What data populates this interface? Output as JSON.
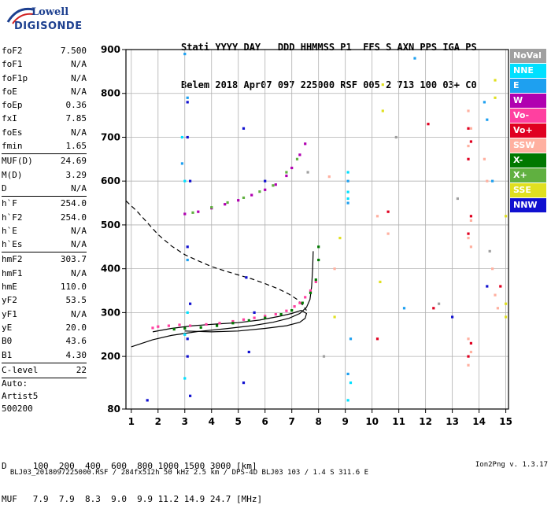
{
  "logo": {
    "line1": "Lowell",
    "line2": "DIGISONDE"
  },
  "header": {
    "line1": "Stati YYYY DAY   DDD HHMMSS P1  FFS S AXN PPS IGA PS",
    "line2": "Belem 2018 Apr07 097 225000 RSF 005 2 713 100 03+ C0"
  },
  "params": [
    {
      "label": "foF2",
      "value": "7.500"
    },
    {
      "label": "foF1",
      "value": "N/A"
    },
    {
      "label": "foF1p",
      "value": "N/A"
    },
    {
      "label": "foE",
      "value": "N/A"
    },
    {
      "label": "foEp",
      "value": "0.36"
    },
    {
      "label": "fxI",
      "value": "7.85"
    },
    {
      "label": "foEs",
      "value": "N/A"
    },
    {
      "label": "fmin",
      "value": "1.65",
      "sep_after": true
    },
    {
      "label": "MUF(D)",
      "value": "24.69"
    },
    {
      "label": "M(D)",
      "value": "3.29"
    },
    {
      "label": "D",
      "value": "N/A",
      "sep_after": true
    },
    {
      "label": "h`F",
      "value": "254.0"
    },
    {
      "label": "h`F2",
      "value": "254.0"
    },
    {
      "label": "h`E",
      "value": "N/A"
    },
    {
      "label": "h`Es",
      "value": "N/A",
      "sep_after": true
    },
    {
      "label": "hmF2",
      "value": "303.7"
    },
    {
      "label": "hmF1",
      "value": "N/A"
    },
    {
      "label": "hmE",
      "value": "110.0"
    },
    {
      "label": "yF2",
      "value": "53.5"
    },
    {
      "label": "yF1",
      "value": "N/A"
    },
    {
      "label": "yE",
      "value": "20.0"
    },
    {
      "label": "B0",
      "value": "43.6"
    },
    {
      "label": "B1",
      "value": "4.30",
      "sep_after": true
    },
    {
      "label": "C-level",
      "value": "22",
      "sep_after": true
    }
  ],
  "auto": {
    "line1": "Auto:",
    "line2": "Artist5",
    "line3": "500200"
  },
  "muf_table": {
    "d_row": "D     100  200  400  600  800 1000 1500 3000 [km]",
    "muf_row": "MUF   7.9  7.9  8.3  9.0  9.9 11.2 14.9 24.7 [MHz]"
  },
  "footer": {
    "left": "BLJ03_2018097225000.RSF / 284fx512h 50 kHz 2.5 km / DPS-4D BLJ03 103 / 1.4 S 311.6 E",
    "right": "Ion2Png v. 1.3.17"
  },
  "legend": [
    {
      "label": "NoVal",
      "color": "#a0a0a0"
    },
    {
      "label": "NNE",
      "color": "#00e0ff"
    },
    {
      "label": "E",
      "color": "#1ea0f0"
    },
    {
      "label": "W",
      "color": "#b000b0"
    },
    {
      "label": "Vo-",
      "color": "#ff40a0"
    },
    {
      "label": "Vo+",
      "color": "#e00020"
    },
    {
      "label": "SSW",
      "color": "#ffb0a0"
    },
    {
      "label": "X-",
      "color": "#007800"
    },
    {
      "label": "X+",
      "color": "#60b040"
    },
    {
      "label": "SSE",
      "color": "#e0e020"
    },
    {
      "label": "NNW",
      "color": "#1010d0"
    }
  ],
  "chart_data": {
    "type": "scatter",
    "xlabel": "",
    "ylabel": "",
    "xlim": [
      0.8,
      15.1
    ],
    "ylim": [
      80,
      900
    ],
    "x_ticks": [
      1,
      2,
      3,
      4,
      5,
      6,
      7,
      8,
      9,
      10,
      11,
      12,
      13,
      14,
      15
    ],
    "y_ticks": [
      80,
      200,
      300,
      400,
      500,
      600,
      700,
      800,
      900
    ],
    "grid": true,
    "legend_position": "right",
    "series": [
      {
        "name": "Vo-",
        "color": "#ff40a0",
        "points": [
          [
            1.8,
            265
          ],
          [
            2.0,
            268
          ],
          [
            2.4,
            270
          ],
          [
            2.8,
            272
          ],
          [
            3.2,
            270
          ],
          [
            3.8,
            273
          ],
          [
            4.3,
            276
          ],
          [
            4.8,
            280
          ],
          [
            5.2,
            284
          ],
          [
            5.6,
            288
          ],
          [
            6.0,
            292
          ],
          [
            6.4,
            296
          ],
          [
            6.8,
            304
          ],
          [
            7.1,
            314
          ],
          [
            7.3,
            322
          ],
          [
            7.5,
            335
          ],
          [
            7.7,
            350
          ],
          [
            7.9,
            370
          ]
        ]
      },
      {
        "name": "X-",
        "color": "#007800",
        "points": [
          [
            2.6,
            262
          ],
          [
            3.0,
            264
          ],
          [
            3.6,
            266
          ],
          [
            4.2,
            270
          ],
          [
            4.8,
            276
          ],
          [
            5.4,
            282
          ],
          [
            6.0,
            288
          ],
          [
            6.6,
            296
          ],
          [
            7.0,
            305
          ],
          [
            7.4,
            322
          ],
          [
            7.7,
            345
          ],
          [
            7.9,
            375
          ],
          [
            8.0,
            420
          ],
          [
            8.0,
            450
          ]
        ]
      },
      {
        "name": "W",
        "color": "#b000b0",
        "points": [
          [
            3.0,
            525
          ],
          [
            3.5,
            530
          ],
          [
            4.0,
            538
          ],
          [
            4.5,
            547
          ],
          [
            5.0,
            556
          ],
          [
            5.5,
            568
          ],
          [
            6.0,
            580
          ],
          [
            6.4,
            592
          ],
          [
            6.8,
            612
          ],
          [
            7.0,
            630
          ],
          [
            7.3,
            660
          ],
          [
            7.5,
            685
          ]
        ]
      },
      {
        "name": "X+",
        "color": "#60b040",
        "points": [
          [
            3.3,
            528
          ],
          [
            4.0,
            540
          ],
          [
            4.6,
            551
          ],
          [
            5.2,
            562
          ],
          [
            5.8,
            576
          ],
          [
            6.3,
            590
          ],
          [
            6.8,
            620
          ],
          [
            7.2,
            650
          ]
        ]
      },
      {
        "name": "SSW",
        "color": "#ffb0a0",
        "points": [
          [
            13.6,
            760
          ],
          [
            13.7,
            720
          ],
          [
            13.6,
            680
          ],
          [
            13.7,
            510
          ],
          [
            13.6,
            470
          ],
          [
            13.7,
            450
          ],
          [
            13.6,
            240
          ],
          [
            13.7,
            210
          ],
          [
            13.6,
            180
          ],
          [
            14.2,
            650
          ],
          [
            14.3,
            600
          ],
          [
            14.5,
            400
          ],
          [
            14.6,
            340
          ],
          [
            14.7,
            310
          ],
          [
            10.6,
            480
          ],
          [
            10.2,
            520
          ],
          [
            8.4,
            610
          ],
          [
            8.6,
            400
          ]
        ]
      },
      {
        "name": "E",
        "color": "#1ea0f0",
        "points": [
          [
            3.0,
            890
          ],
          [
            3.1,
            790
          ],
          [
            2.9,
            640
          ],
          [
            3.1,
            420
          ],
          [
            9.1,
            600
          ],
          [
            9.1,
            550
          ],
          [
            9.2,
            240
          ],
          [
            9.1,
            160
          ],
          [
            14.5,
            600
          ],
          [
            14.3,
            740
          ],
          [
            14.2,
            780
          ],
          [
            11.2,
            310
          ],
          [
            11.6,
            880
          ]
        ]
      },
      {
        "name": "NNE",
        "color": "#00e0ff",
        "points": [
          [
            2.9,
            700
          ],
          [
            3.0,
            600
          ],
          [
            3.1,
            300
          ],
          [
            3.0,
            250
          ],
          [
            3.0,
            150
          ],
          [
            9.1,
            620
          ],
          [
            9.1,
            575
          ],
          [
            9.1,
            560
          ],
          [
            9.2,
            140
          ],
          [
            9.1,
            100
          ]
        ]
      },
      {
        "name": "NNW",
        "color": "#1010d0",
        "points": [
          [
            3.1,
            780
          ],
          [
            3.1,
            700
          ],
          [
            3.2,
            600
          ],
          [
            3.1,
            450
          ],
          [
            3.2,
            320
          ],
          [
            3.1,
            240
          ],
          [
            3.1,
            200
          ],
          [
            3.2,
            110
          ],
          [
            5.2,
            720
          ],
          [
            5.3,
            380
          ],
          [
            5.4,
            210
          ],
          [
            5.2,
            140
          ],
          [
            6.0,
            600
          ],
          [
            13.0,
            290
          ],
          [
            14.3,
            360
          ],
          [
            1.6,
            100
          ],
          [
            5.6,
            300
          ]
        ]
      },
      {
        "name": "Vo+",
        "color": "#e00020",
        "points": [
          [
            13.6,
            720
          ],
          [
            13.7,
            690
          ],
          [
            13.6,
            650
          ],
          [
            13.7,
            520
          ],
          [
            13.6,
            480
          ],
          [
            13.7,
            230
          ],
          [
            13.6,
            200
          ],
          [
            10.6,
            530
          ],
          [
            10.2,
            240
          ],
          [
            12.1,
            730
          ],
          [
            12.3,
            310
          ],
          [
            14.8,
            360
          ]
        ]
      },
      {
        "name": "SSE",
        "color": "#e0e020",
        "points": [
          [
            15.0,
            520
          ],
          [
            15.0,
            320
          ],
          [
            15.0,
            290
          ],
          [
            14.6,
            830
          ],
          [
            14.6,
            790
          ],
          [
            10.4,
            820
          ],
          [
            10.4,
            760
          ],
          [
            10.3,
            370
          ],
          [
            8.8,
            470
          ],
          [
            8.6,
            290
          ]
        ]
      },
      {
        "name": "NoVal",
        "color": "#a0a0a0",
        "points": [
          [
            10.9,
            700
          ],
          [
            12.5,
            320
          ],
          [
            13.2,
            560
          ],
          [
            14.4,
            440
          ],
          [
            8.2,
            200
          ],
          [
            7.6,
            620
          ]
        ]
      }
    ],
    "curves": [
      {
        "style": "solid",
        "points": [
          [
            1.0,
            222
          ],
          [
            1.8,
            238
          ],
          [
            2.5,
            248
          ],
          [
            3.5,
            257
          ],
          [
            4.5,
            263
          ],
          [
            5.5,
            270
          ],
          [
            6.3,
            278
          ],
          [
            6.9,
            287
          ],
          [
            7.3,
            298
          ],
          [
            7.55,
            312
          ],
          [
            7.68,
            330
          ],
          [
            7.74,
            360
          ],
          [
            7.78,
            400
          ],
          [
            7.8,
            440
          ]
        ]
      },
      {
        "style": "solid",
        "points": [
          [
            1.8,
            256
          ],
          [
            2.5,
            264
          ],
          [
            3.3,
            270
          ],
          [
            4.2,
            274
          ],
          [
            5.0,
            277
          ],
          [
            5.8,
            283
          ],
          [
            6.5,
            291
          ],
          [
            7.0,
            298
          ],
          [
            7.35,
            305
          ],
          [
            7.55,
            298
          ],
          [
            7.5,
            287
          ],
          [
            7.3,
            278
          ],
          [
            6.8,
            270
          ],
          [
            6.0,
            264
          ],
          [
            5.0,
            258
          ],
          [
            4.0,
            256
          ],
          [
            3.0,
            258
          ]
        ]
      },
      {
        "style": "dashed",
        "points": [
          [
            0.8,
            555
          ],
          [
            1.2,
            532
          ],
          [
            1.6,
            505
          ],
          [
            2.0,
            478
          ],
          [
            2.5,
            452
          ],
          [
            3.0,
            432
          ],
          [
            3.5,
            418
          ],
          [
            4.0,
            405
          ],
          [
            4.5,
            395
          ],
          [
            5.0,
            386
          ],
          [
            5.5,
            377
          ],
          [
            6.0,
            366
          ],
          [
            6.5,
            354
          ],
          [
            6.9,
            342
          ],
          [
            7.2,
            330
          ],
          [
            7.4,
            318
          ],
          [
            7.55,
            305
          ]
        ]
      }
    ]
  }
}
